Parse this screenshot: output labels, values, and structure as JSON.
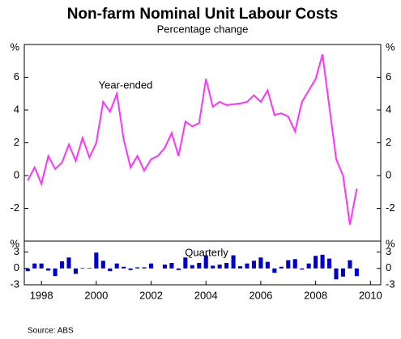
{
  "chart_data": [
    {
      "type": "line",
      "title": "Non-farm Nominal Unit Labour Costs",
      "subtitle": "Percentage change",
      "xlim": [
        1997.375,
        2010.375
      ],
      "ylim": [
        -4,
        8
      ],
      "yticks": [
        {
          "value": 8,
          "label": "%"
        },
        6,
        4,
        2,
        0,
        -2
      ],
      "x": [
        1997.5,
        1997.75,
        1998,
        1998.25,
        1998.5,
        1998.75,
        1999,
        1999.25,
        1999.5,
        1999.75,
        2000,
        2000.25,
        2000.5,
        2000.75,
        2001,
        2001.25,
        2001.5,
        2001.75,
        2002,
        2002.25,
        2002.5,
        2002.75,
        2003,
        2003.25,
        2003.5,
        2003.75,
        2004,
        2004.25,
        2004.5,
        2004.75,
        2005,
        2005.25,
        2005.5,
        2005.75,
        2006,
        2006.25,
        2006.5,
        2006.75,
        2007,
        2007.25,
        2007.5,
        2007.75,
        2008,
        2008.25,
        2008.5,
        2008.75,
        2009,
        2009.25,
        2009.5
      ],
      "series": [
        {
          "name": "Year-ended",
          "color": "#ff33ff",
          "values": [
            -0.3,
            0.5,
            -0.5,
            1.2,
            0.4,
            0.8,
            1.9,
            0.9,
            2.3,
            1.1,
            2.0,
            4.5,
            3.9,
            5.0,
            2.2,
            0.5,
            1.2,
            0.3,
            1.0,
            1.2,
            1.7,
            2.6,
            1.2,
            3.3,
            3.0,
            3.2,
            5.9,
            4.2,
            4.5,
            4.3,
            4.35,
            4.4,
            4.5,
            4.9,
            4.5,
            5.2,
            3.7,
            3.8,
            3.6,
            2.7,
            4.5,
            5.2,
            5.9,
            7.4,
            4.2,
            1.0,
            0.0,
            -3.0,
            -0.8
          ]
        }
      ]
    },
    {
      "type": "bar",
      "source": "Source: ABS",
      "xlim": [
        1997.375,
        2010.375
      ],
      "xticks": [
        1998,
        2000,
        2002,
        2004,
        2006,
        2008,
        2010
      ],
      "ylim": [
        -3,
        5
      ],
      "yticks": [
        {
          "value": 5,
          "label": "%"
        },
        3,
        0,
        -3
      ],
      "x": [
        1997.5,
        1997.75,
        1998,
        1998.25,
        1998.5,
        1998.75,
        1999,
        1999.25,
        1999.5,
        1999.75,
        2000,
        2000.25,
        2000.5,
        2000.75,
        2001,
        2001.25,
        2001.5,
        2001.75,
        2002,
        2002.25,
        2002.5,
        2002.75,
        2003,
        2003.25,
        2003.5,
        2003.75,
        2004,
        2004.25,
        2004.5,
        2004.75,
        2005,
        2005.25,
        2005.5,
        2005.75,
        2006,
        2006.25,
        2006.5,
        2006.75,
        2007,
        2007.25,
        2007.5,
        2007.75,
        2008,
        2008.25,
        2008.5,
        2008.75,
        2009,
        2009.25,
        2009.5
      ],
      "series": [
        {
          "name": "Quarterly",
          "color": "#0000cc",
          "values": [
            -0.5,
            0.9,
            0.9,
            -0.4,
            -1.4,
            1.3,
            2.0,
            -1.0,
            0.1,
            0.1,
            2.9,
            1.4,
            -0.5,
            0.9,
            0.3,
            -0.3,
            0.2,
            0.2,
            0.9,
            0.0,
            0.7,
            1.0,
            -0.3,
            2.0,
            0.6,
            1.0,
            2.4,
            0.5,
            0.7,
            1.0,
            2.4,
            0.4,
            0.9,
            1.4,
            2.0,
            1.2,
            -0.8,
            0.3,
            1.5,
            1.7,
            -0.2,
            0.9,
            2.3,
            2.5,
            1.8,
            -2.0,
            -1.5,
            1.5,
            -1.4
          ]
        }
      ]
    }
  ]
}
